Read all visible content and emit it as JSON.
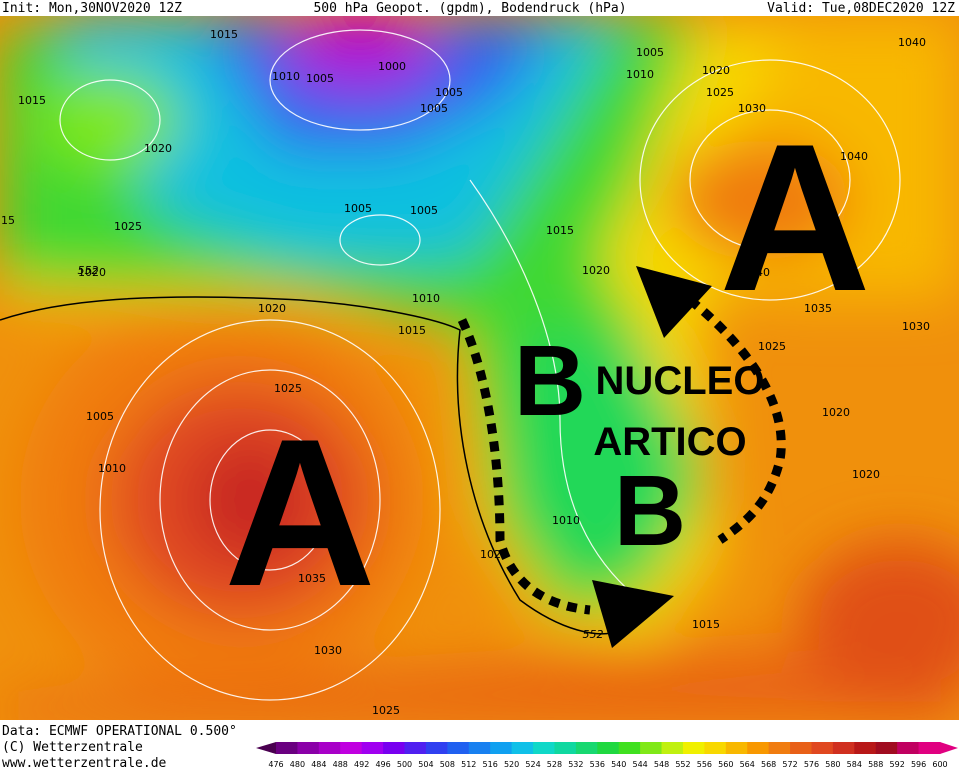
{
  "header": {
    "init": "Init: Mon,30NOV2020 12Z",
    "title": "500 hPa Geopot. (gpdm), Bodendruck (hPa)",
    "valid": "Valid: Tue,08DEC2020 12Z"
  },
  "map": {
    "isobar_labels": [
      1015,
      1010,
      1005,
      1000,
      1005,
      1005,
      1015,
      1020,
      1025,
      1020,
      1005,
      1005,
      1015,
      1020,
      1010,
      1015,
      1020,
      1025,
      1005,
      1010,
      1035,
      1030,
      1025,
      1020,
      1010,
      1015,
      1005,
      1010,
      1020,
      1025,
      1030,
      1040,
      1040,
      1040,
      1035,
      1030,
      1025,
      1020,
      1020,
      15
    ],
    "height_labels": [
      552,
      552
    ],
    "annotations": {
      "high_west": "A",
      "high_east": "A",
      "low_north": "B",
      "low_south": "B",
      "nucleo": "NUCLEO",
      "artico": "ARTICO"
    }
  },
  "footer": {
    "data": "Data: ECMWF OPERATIONAL 0.500°",
    "copyright": "(C) Wetterzentrale",
    "url": "www.wetterzentrale.de"
  },
  "legend": {
    "labels": [
      476,
      480,
      484,
      488,
      492,
      496,
      500,
      504,
      508,
      512,
      516,
      520,
      524,
      528,
      532,
      536,
      540,
      544,
      548,
      552,
      556,
      560,
      564,
      568,
      572,
      576,
      580,
      584,
      588,
      592,
      596,
      600
    ],
    "colors": [
      "#4a0050",
      "#6a0080",
      "#8a00a8",
      "#a800c8",
      "#c000e0",
      "#a000f0",
      "#7800f0",
      "#5020f0",
      "#3040f0",
      "#2060f0",
      "#1880f0",
      "#10a0f0",
      "#10c0e8",
      "#10d8c8",
      "#10d8a0",
      "#18d870",
      "#20d840",
      "#40e020",
      "#80e818",
      "#c0f010",
      "#f0f000",
      "#f8d800",
      "#f8b800",
      "#f89800",
      "#f07c10",
      "#e86018",
      "#e04820",
      "#d03020",
      "#b81818",
      "#a00c20",
      "#c00060",
      "#e00080"
    ]
  }
}
